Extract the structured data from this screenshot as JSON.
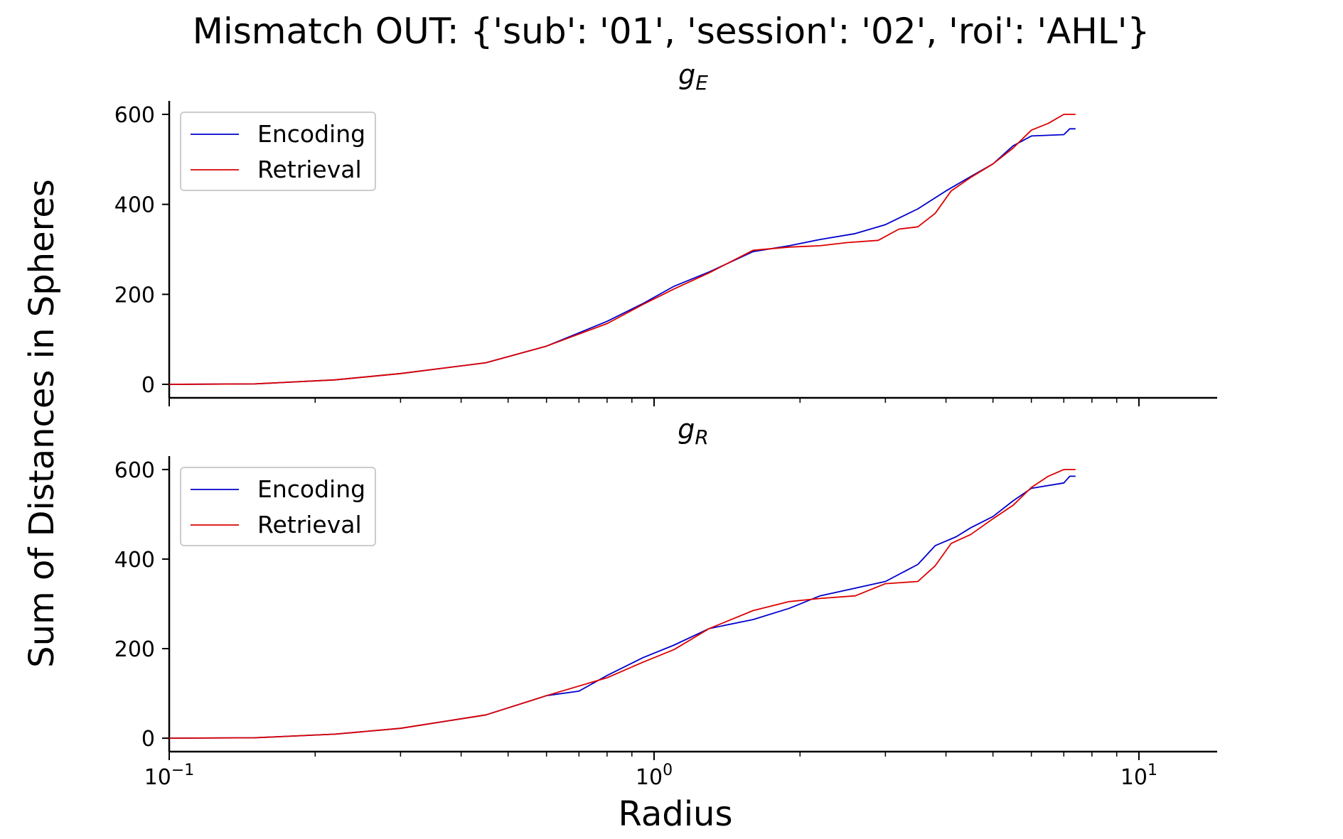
{
  "chart_data": {
    "type": "line",
    "title": "Mismatch OUT: {'sub': '01', 'session': '02', 'roi': 'AHL'}",
    "xlabel": "Radius",
    "ylabel": "Sum of Distances in Spheres",
    "xscale": "log",
    "xlim": [
      0.1,
      14.5
    ],
    "xticks": [
      {
        "value": 0.1,
        "base": "10",
        "exp": "−1"
      },
      {
        "value": 1,
        "base": "10",
        "exp": "0"
      },
      {
        "value": 10,
        "base": "10",
        "exp": "1"
      }
    ],
    "yticks": [
      0,
      200,
      400,
      600
    ],
    "ylim": [
      -30,
      630
    ],
    "grid": false,
    "legend_position": "upper-left",
    "colors": {
      "Encoding": "#0000cc",
      "Retrieval": "#dd0000"
    },
    "panels": [
      {
        "title_main": "g",
        "title_sub": "E",
        "show_xtick_labels": false,
        "series": [
          {
            "name": "Encoding",
            "points": [
              [
                0.1,
                0
              ],
              [
                0.15,
                1
              ],
              [
                0.22,
                10
              ],
              [
                0.3,
                24
              ],
              [
                0.45,
                48
              ],
              [
                0.6,
                85
              ],
              [
                0.8,
                140
              ],
              [
                0.95,
                180
              ],
              [
                1.1,
                218
              ],
              [
                1.3,
                250
              ],
              [
                1.6,
                295
              ],
              [
                1.9,
                308
              ],
              [
                2.2,
                322
              ],
              [
                2.6,
                335
              ],
              [
                3.0,
                355
              ],
              [
                3.5,
                390
              ],
              [
                4.0,
                430
              ],
              [
                4.5,
                462
              ],
              [
                5.0,
                490
              ],
              [
                5.5,
                530
              ],
              [
                6.0,
                552
              ],
              [
                7.0,
                555
              ],
              [
                7.2,
                568
              ],
              [
                7.4,
                568
              ]
            ]
          },
          {
            "name": "Retrieval",
            "points": [
              [
                0.1,
                0
              ],
              [
                0.15,
                1
              ],
              [
                0.22,
                10
              ],
              [
                0.3,
                24
              ],
              [
                0.45,
                48
              ],
              [
                0.6,
                85
              ],
              [
                0.8,
                135
              ],
              [
                0.95,
                178
              ],
              [
                1.1,
                212
              ],
              [
                1.3,
                248
              ],
              [
                1.6,
                298
              ],
              [
                1.9,
                305
              ],
              [
                2.2,
                308
              ],
              [
                2.5,
                315
              ],
              [
                2.9,
                320
              ],
              [
                3.2,
                345
              ],
              [
                3.5,
                350
              ],
              [
                3.8,
                380
              ],
              [
                4.1,
                430
              ],
              [
                4.5,
                460
              ],
              [
                5.0,
                490
              ],
              [
                5.5,
                525
              ],
              [
                6.0,
                565
              ],
              [
                6.5,
                580
              ],
              [
                7.0,
                600
              ],
              [
                7.4,
                600
              ]
            ]
          }
        ]
      },
      {
        "title_main": "g",
        "title_sub": "R",
        "show_xtick_labels": true,
        "series": [
          {
            "name": "Encoding",
            "points": [
              [
                0.1,
                0
              ],
              [
                0.15,
                1
              ],
              [
                0.22,
                9
              ],
              [
                0.3,
                22
              ],
              [
                0.45,
                52
              ],
              [
                0.6,
                95
              ],
              [
                0.7,
                105
              ],
              [
                0.8,
                140
              ],
              [
                0.95,
                180
              ],
              [
                1.1,
                208
              ],
              [
                1.3,
                245
              ],
              [
                1.6,
                265
              ],
              [
                1.9,
                290
              ],
              [
                2.2,
                318
              ],
              [
                2.6,
                335
              ],
              [
                3.0,
                350
              ],
              [
                3.5,
                388
              ],
              [
                3.8,
                430
              ],
              [
                4.2,
                450
              ],
              [
                4.5,
                470
              ],
              [
                5.0,
                495
              ],
              [
                5.5,
                530
              ],
              [
                6.0,
                558
              ],
              [
                7.0,
                570
              ],
              [
                7.2,
                585
              ],
              [
                7.4,
                585
              ]
            ]
          },
          {
            "name": "Retrieval",
            "points": [
              [
                0.1,
                0
              ],
              [
                0.15,
                1
              ],
              [
                0.22,
                9
              ],
              [
                0.3,
                22
              ],
              [
                0.45,
                52
              ],
              [
                0.6,
                95
              ],
              [
                0.8,
                135
              ],
              [
                0.95,
                170
              ],
              [
                1.1,
                198
              ],
              [
                1.3,
                245
              ],
              [
                1.6,
                285
              ],
              [
                1.9,
                305
              ],
              [
                2.2,
                312
              ],
              [
                2.6,
                318
              ],
              [
                3.0,
                345
              ],
              [
                3.5,
                350
              ],
              [
                3.8,
                385
              ],
              [
                4.1,
                435
              ],
              [
                4.5,
                455
              ],
              [
                5.0,
                490
              ],
              [
                5.5,
                520
              ],
              [
                6.0,
                560
              ],
              [
                6.5,
                585
              ],
              [
                7.0,
                600
              ],
              [
                7.4,
                600
              ]
            ]
          }
        ]
      }
    ]
  }
}
